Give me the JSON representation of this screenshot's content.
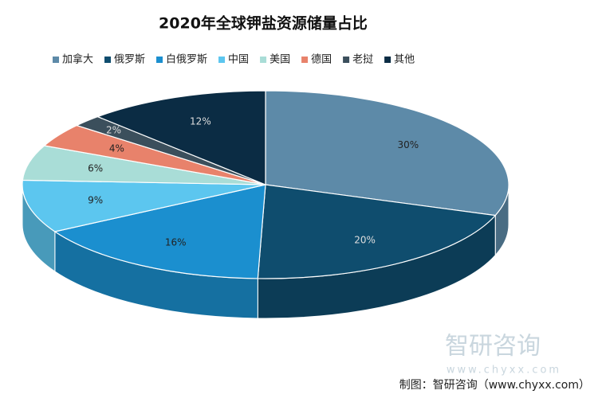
{
  "chart_data": {
    "type": "pie",
    "title": "2020年全球钾盐资源储量占比",
    "categories": [
      "加拿大",
      "俄罗斯",
      "白俄罗斯",
      "中国",
      "美国",
      "德国",
      "老挝",
      "其他"
    ],
    "values": [
      30,
      20,
      16,
      9,
      6,
      4,
      2,
      12
    ],
    "value_labels": [
      "30%",
      "20%",
      "16%",
      "9%",
      "6%",
      "4%",
      "2%",
      "12%"
    ],
    "colors": [
      "#5d8aa8",
      "#0f4d6e",
      "#1b8fcf",
      "#5cc6ef",
      "#a9ddd7",
      "#e8826b",
      "#3b4f5c",
      "#0b2c44"
    ],
    "legend_position": "top",
    "watermark": "智研咨询",
    "watermark_url": "www.chyxx.com",
    "source": "制图：智研咨询（www.chyxx.com）"
  }
}
